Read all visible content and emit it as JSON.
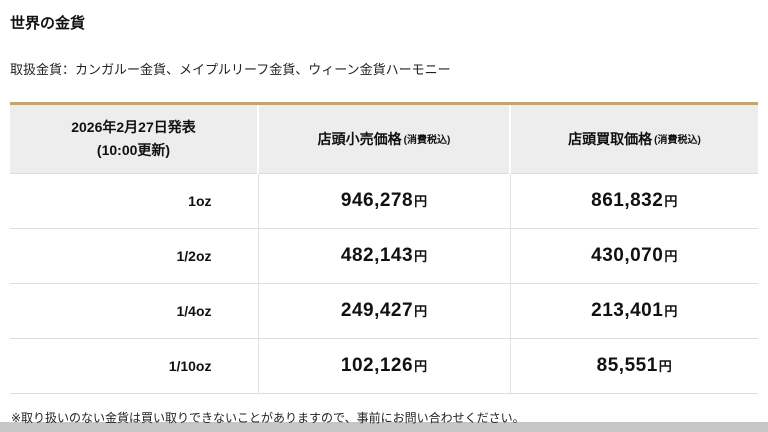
{
  "page": {
    "title": "世界の金貨",
    "subtitle": "取扱金貨：カンガルー金貨、メイプルリーフ金貨、ウィーン金貨ハーモニー",
    "note": "※取り扱いのない金貨は買い取りできないことがありますので、事前にお問い合わせください。"
  },
  "table": {
    "header": {
      "date_line1": "2026年2月27日発表",
      "date_line2": "(10:00更新)",
      "retail_label": "店頭小売価格",
      "buy_label": "店頭買取価格",
      "tax_note": "(消費税込)"
    },
    "yen": "円",
    "rows": [
      {
        "size": "1oz",
        "retail": "946,278",
        "buy": "861,832"
      },
      {
        "size": "1/2oz",
        "retail": "482,143",
        "buy": "430,070"
      },
      {
        "size": "1/4oz",
        "retail": "249,427",
        "buy": "213,401"
      },
      {
        "size": "1/10oz",
        "retail": "102,126",
        "buy": "85,551"
      }
    ],
    "colors": {
      "accent_top_border": "#c9a35f",
      "header_bg": "#ededed",
      "row_border": "#dddddd"
    }
  }
}
